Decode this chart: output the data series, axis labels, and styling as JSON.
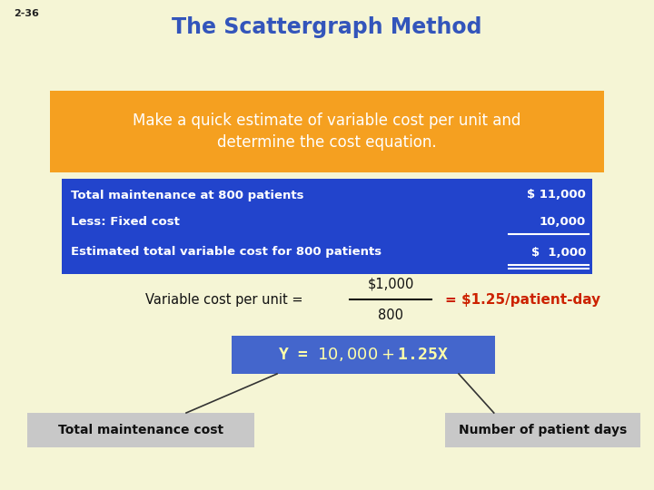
{
  "background_color": "#f5f5d5",
  "slide_num": "2-36",
  "title": "The Scattergraph Method",
  "title_color": "#3355bb",
  "orange_box_text1": "Make a quick estimate of variable cost per unit and",
  "orange_box_text2": "determine the cost equation.",
  "orange_box_color": "#f5a020",
  "orange_box_text_color": "#ffffff",
  "blue_box_rows": [
    {
      "label": "Total maintenance at 800 patients",
      "value": "$ 11,000"
    },
    {
      "label": "Less: Fixed cost",
      "value": "10,000"
    },
    {
      "label": "Estimated total variable cost for 800 patients",
      "value": "$  1,000"
    }
  ],
  "blue_box_color": "#2244cc",
  "blue_box_text_color": "#ffffff",
  "var_cost_label": "Variable cost per unit = ",
  "var_cost_numerator": "$1,000",
  "var_cost_denominator": "800",
  "var_cost_result": "= $1.25/patient-day",
  "var_cost_result_color": "#cc2200",
  "equation_text": "Y = $10,000 + $1.25X",
  "equation_box_color": "#4466cc",
  "equation_text_color": "#ffffaa",
  "label_left": "Total maintenance cost",
  "label_right": "Number of patient days",
  "label_box_color": "#c8c8c8",
  "label_text_color": "#111111"
}
